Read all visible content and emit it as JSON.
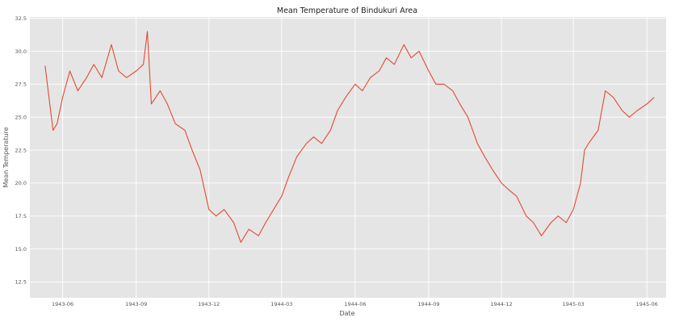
{
  "chart_data": {
    "type": "line",
    "title": "Mean Temperature of Bindukuri Area",
    "xlabel": "Date",
    "ylabel": "Mean Temperature",
    "ylim": [
      11.3,
      32.6
    ],
    "xlim": [
      "1943-04-21",
      "1945-06-25"
    ],
    "grid": true,
    "style": "ggplot",
    "line_color": "#E24A33",
    "x_ticks": [
      "1943-06",
      "1943-09",
      "1943-12",
      "1944-03",
      "1944-06",
      "1944-09",
      "1944-12",
      "1945-03",
      "1945-06"
    ],
    "y_ticks": [
      12.5,
      15.0,
      17.5,
      20.0,
      22.5,
      25.0,
      27.5,
      30.0,
      32.5
    ],
    "series": [
      {
        "x": [
          "1943-05-10",
          "1943-05-20",
          "1943-05-25",
          "1943-06-01",
          "1943-06-10",
          "1943-06-20",
          "1943-07-01",
          "1943-07-10",
          "1943-07-20",
          "1943-08-01",
          "1943-08-10",
          "1943-08-20",
          "1943-09-01",
          "1943-09-10",
          "1943-09-15",
          "1943-09-20",
          "1943-10-01",
          "1943-10-10",
          "1943-10-20",
          "1943-11-01",
          "1943-11-10",
          "1943-11-20",
          "1943-12-01",
          "1943-12-10",
          "1943-12-20",
          "1944-01-01",
          "1944-01-10",
          "1944-01-20",
          "1944-02-01",
          "1944-02-10",
          "1944-02-20",
          "1944-03-01",
          "1944-03-10",
          "1944-03-20",
          "1944-04-01",
          "1944-04-10",
          "1944-04-20",
          "1944-05-01",
          "1944-05-10",
          "1944-05-20",
          "1944-06-01",
          "1944-06-10",
          "1944-06-20",
          "1944-07-01",
          "1944-07-10",
          "1944-07-20",
          "1944-08-01",
          "1944-08-10",
          "1944-08-20",
          "1944-09-01",
          "1944-09-10",
          "1944-09-20",
          "1944-10-01",
          "1944-10-10",
          "1944-10-20",
          "1944-11-01",
          "1944-11-10",
          "1944-11-20",
          "1944-12-01",
          "1944-12-10",
          "1944-12-20",
          "1945-01-01",
          "1945-01-10",
          "1945-01-20",
          "1945-02-01",
          "1945-02-10",
          "1945-02-20",
          "1945-03-01",
          "1945-03-10",
          "1945-03-15",
          "1945-03-20",
          "1945-04-01",
          "1945-04-10",
          "1945-04-20",
          "1945-05-01",
          "1945-05-10",
          "1945-05-20",
          "1945-06-01",
          "1945-06-10"
        ],
        "values": [
          28.9,
          24.0,
          24.5,
          26.5,
          28.5,
          27.0,
          28.0,
          29.0,
          28.0,
          30.5,
          28.5,
          28.0,
          28.5,
          29.0,
          31.5,
          26.0,
          27.0,
          26.0,
          24.5,
          24.0,
          22.5,
          21.0,
          18.0,
          17.5,
          18.0,
          17.0,
          15.5,
          16.5,
          16.0,
          17.0,
          18.0,
          19.0,
          20.5,
          22.0,
          23.0,
          23.5,
          23.0,
          24.0,
          25.5,
          26.5,
          27.5,
          27.0,
          28.0,
          28.5,
          29.5,
          29.0,
          30.5,
          29.5,
          30.0,
          28.5,
          27.5,
          27.5,
          27.0,
          26.0,
          25.0,
          23.0,
          22.0,
          21.0,
          20.0,
          19.5,
          19.0,
          17.5,
          17.0,
          16.0,
          17.0,
          17.5,
          17.0,
          18.0,
          20.0,
          22.5,
          23.0,
          24.0,
          27.0,
          26.5,
          25.5,
          25.0,
          25.5,
          26.0,
          26.5
        ]
      }
    ]
  }
}
